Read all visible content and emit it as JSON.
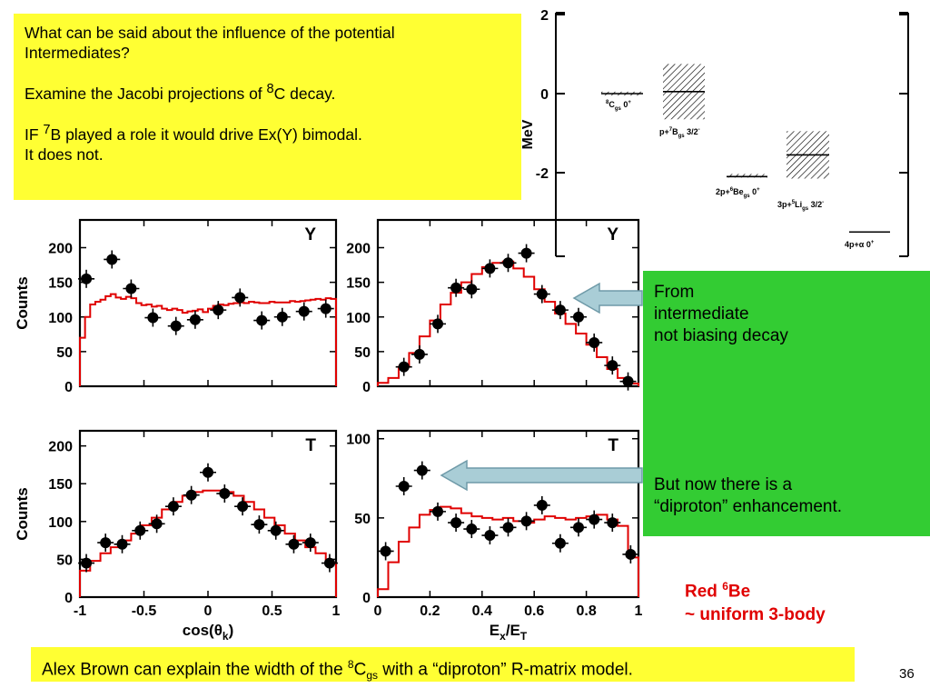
{
  "question_box": {
    "line1": "What can be said about the influence of the potential",
    "line2": "Intermediates?",
    "jacobi_pre": "Examine the Jacobi projections of ",
    "jacobi_sup": "8",
    "jacobi_post": "C decay.",
    "if_pre": "IF ",
    "if_sup": "7",
    "if_post": "B played a role it would drive Ex(Y) bimodal.",
    "does_not": "It does not."
  },
  "green_box": {
    "top_text": [
      "From",
      "intermediate",
      "not biasing decay"
    ],
    "bottom_text": [
      "But now there is a",
      "“diproton” enhancement."
    ]
  },
  "red_note": {
    "line1_pre": "Red ",
    "line1_sup": "6",
    "line1_post": "Be",
    "line2": "~ uniform 3-body"
  },
  "bottom_box": {
    "pre": "Alex Brown can explain the width of the ",
    "sup": "8",
    "mid": "C",
    "sub": "gs",
    "post": " with a “diproton” R-matrix model."
  },
  "page_number": "36",
  "colors": {
    "yellow": "#ffff33",
    "green": "#33cc33",
    "red": "#e00000",
    "arrow_fill": "#a9cdd6",
    "arrow_stroke": "#6f9aa8"
  },
  "chart_data": [
    {
      "type": "scatter",
      "title": "Y",
      "xlabel": "",
      "ylabel": "Counts",
      "xlim": [
        -1,
        1
      ],
      "ylim": [
        0,
        240
      ],
      "yticks": [
        0,
        50,
        100,
        150,
        200
      ],
      "x_tick_labels_shown": false,
      "series": [
        {
          "kind": "points",
          "x": [
            -0.95,
            -0.75,
            -0.6,
            -0.43,
            -0.25,
            -0.1,
            0.08,
            0.25,
            0.42,
            0.58,
            0.75,
            0.92
          ],
          "y": [
            155,
            183,
            141,
            99,
            87,
            96,
            110,
            128,
            95,
            100,
            108,
            112
          ]
        },
        {
          "kind": "step",
          "color": "#e00000",
          "x": [
            -1,
            -0.96,
            -0.92,
            -0.88,
            -0.84,
            -0.8,
            -0.76,
            -0.72,
            -0.68,
            -0.64,
            -0.6,
            -0.56,
            -0.52,
            -0.48,
            -0.44,
            -0.4,
            -0.36,
            -0.32,
            -0.28,
            -0.24,
            -0.2,
            -0.16,
            -0.12,
            -0.08,
            -0.04,
            0,
            0.04,
            0.08,
            0.12,
            0.16,
            0.2,
            0.24,
            0.28,
            0.32,
            0.36,
            0.4,
            0.44,
            0.48,
            0.52,
            0.56,
            0.6,
            0.64,
            0.68,
            0.72,
            0.76,
            0.8,
            0.84,
            0.88,
            0.92,
            0.96
          ],
          "y": [
            70,
            100,
            118,
            122,
            125,
            130,
            133,
            128,
            126,
            129,
            127,
            120,
            117,
            118,
            115,
            116,
            112,
            110,
            112,
            110,
            106,
            108,
            109,
            111,
            107,
            112,
            116,
            118,
            117,
            119,
            120,
            121,
            120,
            122,
            121,
            120,
            120,
            122,
            121,
            121,
            121,
            123,
            122,
            123,
            124,
            125,
            126,
            125,
            127,
            126
          ]
        }
      ]
    },
    {
      "type": "scatter",
      "title": "Y",
      "xlabel": "",
      "ylabel": "",
      "xlim": [
        0,
        1
      ],
      "ylim": [
        0,
        240
      ],
      "yticks": [
        0,
        50,
        100,
        150,
        200
      ],
      "x_tick_labels_shown": false,
      "series": [
        {
          "kind": "points",
          "x": [
            0.1,
            0.16,
            0.23,
            0.3,
            0.36,
            0.43,
            0.5,
            0.57,
            0.63,
            0.7,
            0.77,
            0.83,
            0.9,
            0.96
          ],
          "y": [
            28,
            46,
            90,
            142,
            140,
            170,
            178,
            192,
            133,
            110,
            100,
            63,
            30,
            7
          ]
        },
        {
          "kind": "step",
          "color": "#e00000",
          "x": [
            0,
            0.04,
            0.08,
            0.12,
            0.16,
            0.2,
            0.24,
            0.28,
            0.32,
            0.36,
            0.4,
            0.44,
            0.48,
            0.52,
            0.56,
            0.6,
            0.64,
            0.68,
            0.72,
            0.76,
            0.8,
            0.84,
            0.88,
            0.92,
            0.96
          ],
          "y": [
            5,
            12,
            28,
            48,
            72,
            95,
            118,
            135,
            150,
            162,
            172,
            178,
            180,
            170,
            158,
            140,
            122,
            105,
            90,
            76,
            60,
            42,
            25,
            12,
            4
          ]
        }
      ]
    },
    {
      "type": "scatter",
      "title": "T",
      "xlabel": "cos(θk)",
      "ylabel": "Counts",
      "xlim": [
        -1,
        1
      ],
      "ylim": [
        0,
        220
      ],
      "yticks": [
        0,
        50,
        100,
        150,
        200
      ],
      "xticks": [
        -1,
        -0.5,
        0,
        0.5,
        1
      ],
      "x_tick_labels": [
        "-1",
        "-0.5",
        "0",
        "0.5",
        "1"
      ],
      "series": [
        {
          "kind": "points",
          "x": [
            -0.95,
            -0.8,
            -0.67,
            -0.53,
            -0.4,
            -0.27,
            -0.13,
            0,
            0.13,
            0.27,
            0.4,
            0.53,
            0.67,
            0.8,
            0.95
          ],
          "y": [
            45,
            72,
            70,
            88,
            97,
            120,
            135,
            165,
            137,
            120,
            96,
            88,
            70,
            72,
            45
          ]
        },
        {
          "kind": "step",
          "color": "#e00000",
          "x": [
            -1,
            -0.92,
            -0.84,
            -0.76,
            -0.68,
            -0.6,
            -0.52,
            -0.44,
            -0.36,
            -0.28,
            -0.2,
            -0.12,
            -0.04,
            0.04,
            0.12,
            0.2,
            0.28,
            0.36,
            0.44,
            0.52,
            0.6,
            0.68,
            0.76,
            0.84,
            0.92
          ],
          "y": [
            35,
            48,
            58,
            66,
            75,
            84,
            95,
            105,
            116,
            126,
            134,
            139,
            141,
            141,
            139,
            134,
            126,
            116,
            105,
            95,
            84,
            75,
            66,
            58,
            45
          ]
        }
      ]
    },
    {
      "type": "scatter",
      "title": "T",
      "xlabel": "Ex/ET",
      "ylabel": "",
      "xlim": [
        0,
        1
      ],
      "ylim": [
        0,
        105
      ],
      "yticks": [
        0,
        50,
        100
      ],
      "xticks": [
        0,
        0.2,
        0.4,
        0.6,
        0.8,
        1
      ],
      "x_tick_labels": [
        "0",
        "0.2",
        "0.4",
        "0.6",
        "0.8",
        "1"
      ],
      "series": [
        {
          "kind": "points",
          "x": [
            0.03,
            0.1,
            0.17,
            0.23,
            0.3,
            0.36,
            0.43,
            0.5,
            0.57,
            0.63,
            0.7,
            0.77,
            0.83,
            0.9,
            0.97
          ],
          "y": [
            29,
            70,
            80,
            54,
            47,
            43,
            39,
            44,
            48,
            58,
            34,
            44,
            49,
            47,
            27
          ]
        },
        {
          "kind": "step",
          "color": "#e00000",
          "x": [
            0,
            0.04,
            0.08,
            0.12,
            0.16,
            0.2,
            0.24,
            0.28,
            0.32,
            0.36,
            0.4,
            0.44,
            0.48,
            0.52,
            0.56,
            0.6,
            0.64,
            0.68,
            0.72,
            0.76,
            0.8,
            0.84,
            0.88,
            0.92,
            0.96
          ],
          "y": [
            5,
            22,
            35,
            44,
            52,
            55,
            57,
            56,
            53,
            51,
            50,
            49,
            50,
            48,
            47,
            49,
            51,
            50,
            49,
            50,
            51,
            52,
            49,
            45,
            25
          ]
        }
      ]
    }
  ],
  "level_scheme": {
    "ylabel": "MeV",
    "yticks": [
      "2",
      "0",
      "-2"
    ],
    "levels": [
      {
        "label_pre": "",
        "sup1": "8",
        "mid": "C",
        "sub": "gs",
        "post": " 0",
        "sup2": "+",
        "energy": 0.0,
        "width": 0.1
      },
      {
        "label_pre": "p+",
        "sup1": "7",
        "mid": "B",
        "sub": "gs",
        "post": " 3/2",
        "sup2": "-",
        "energy": 0.05,
        "width": 1.4
      },
      {
        "label_pre": "2p+",
        "sup1": "6",
        "mid": "Be",
        "sub": "gs",
        "post": " 0",
        "sup2": "+",
        "energy": -2.1,
        "width": 0.05
      },
      {
        "label_pre": "3p+",
        "sup1": "5",
        "mid": "Li",
        "sub": "gs",
        "post": " 3/2",
        "sup2": "-",
        "energy": -1.55,
        "width": 1.2
      },
      {
        "label_pre": "4p+",
        "sup1": "",
        "mid": "α",
        "sub": "",
        "post": " 0",
        "sup2": "+",
        "energy": -3.5,
        "width": 0.0
      }
    ]
  }
}
